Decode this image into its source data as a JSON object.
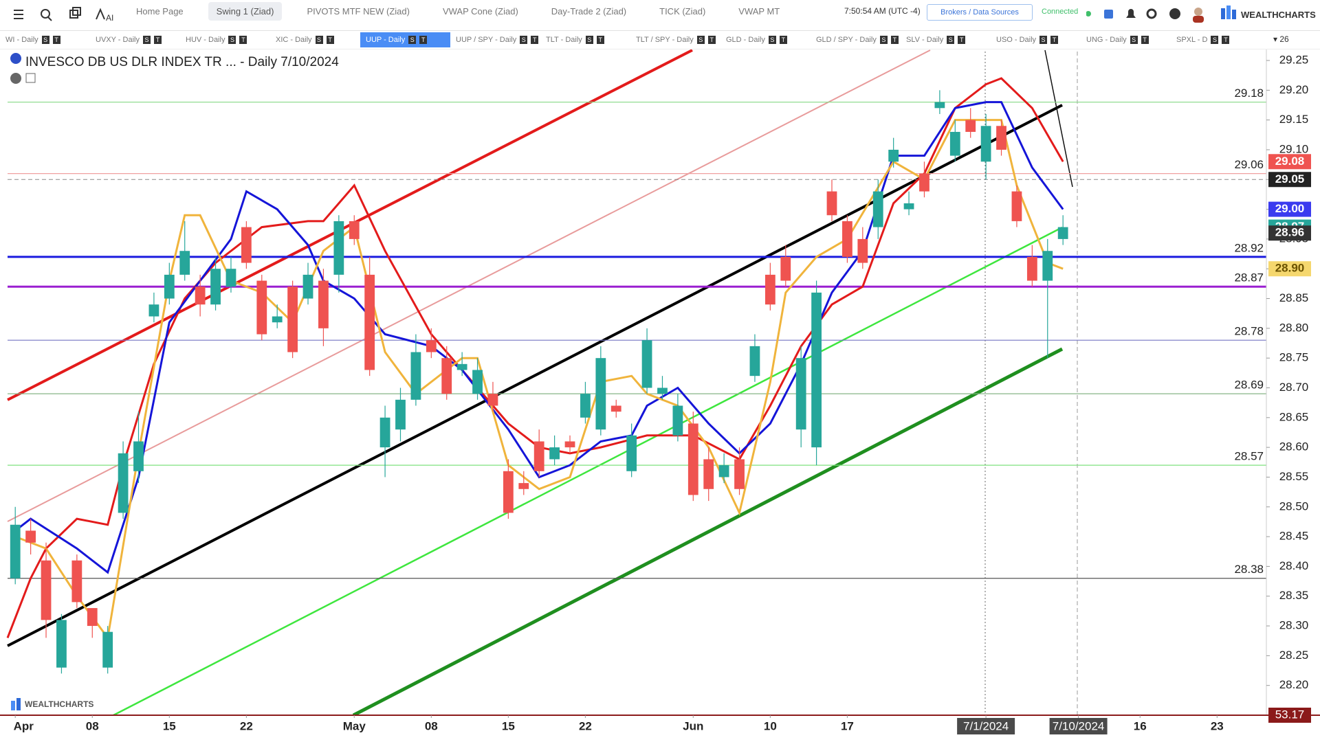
{
  "toolbar": {
    "ai": "AI",
    "tabs": [
      {
        "label": "Home Page",
        "active": false
      },
      {
        "label": "Swing 1 (Ziad)",
        "active": true
      },
      {
        "label": "PIVOTS MTF NEW (Ziad)",
        "active": false
      },
      {
        "label": "VWAP Cone (Ziad)",
        "active": false
      },
      {
        "label": "Day-Trade 2 (Ziad)",
        "active": false
      },
      {
        "label": "TICK (Ziad)",
        "active": false
      },
      {
        "label": "VWAP MT",
        "active": false
      }
    ],
    "time": "7:50:54 AM",
    "timezone": "(UTC -4)",
    "brokers": "Brokers / Data Sources",
    "status": "Connected",
    "brand": "WEALTHCHARTS"
  },
  "watchlist": {
    "badges": [
      "S",
      "T"
    ],
    "count": 26,
    "items": [
      {
        "label": "WI - Daily",
        "active": false
      },
      {
        "label": "UVXY - Daily",
        "active": false
      },
      {
        "label": "HUV - Daily",
        "active": false
      },
      {
        "label": "XIC - Daily",
        "active": false
      },
      {
        "label": "UUP - Daily",
        "active": true
      },
      {
        "label": "UUP / SPY - Daily",
        "active": false
      },
      {
        "label": "TLT - Daily",
        "active": false
      },
      {
        "label": "TLT / SPY - Daily",
        "active": false
      },
      {
        "label": "GLD - Daily",
        "active": false
      },
      {
        "label": "GLD / SPY - Daily",
        "active": false
      },
      {
        "label": "SLV - Daily",
        "active": false
      },
      {
        "label": "USO - Daily",
        "active": false
      },
      {
        "label": "UNG - Daily",
        "active": false
      },
      {
        "label": "SPXL - D",
        "active": false
      }
    ]
  },
  "chart_data": {
    "type": "candlestick",
    "title": "INVESCO DB US DLR INDEX TR ... - Daily 7/10/2024",
    "watermark": "WEALTHCHARTS",
    "up_color": "#26a69a",
    "down_color": "#ef5350",
    "open": [
      28.38,
      28.46,
      28.41,
      28.23,
      28.41,
      28.33,
      28.23,
      28.49,
      28.56,
      28.82,
      28.85,
      28.89,
      28.87,
      28.84,
      28.87,
      28.97,
      28.88,
      28.81,
      28.87,
      28.85,
      28.88,
      28.89,
      28.98,
      28.89,
      28.6,
      28.63,
      28.68,
      28.78,
      28.75,
      28.73,
      28.69,
      28.69,
      28.56,
      28.54,
      28.61,
      28.58,
      28.61,
      28.65,
      28.63,
      28.67,
      28.56,
      28.7,
      28.69,
      28.62,
      28.64,
      28.58,
      28.55,
      28.58,
      28.72,
      28.89,
      28.92,
      28.63,
      28.6,
      29.03,
      28.98,
      28.95,
      28.97,
      29.08,
      29.0,
      29.06,
      29.17,
      29.09,
      29.15,
      29.08,
      29.14,
      29.03,
      28.92,
      28.88,
      28.95
    ],
    "high": [
      28.5,
      28.48,
      28.44,
      28.32,
      28.42,
      28.32,
      28.3,
      28.61,
      28.66,
      28.86,
      28.91,
      28.98,
      28.89,
      28.92,
      28.92,
      28.98,
      28.89,
      28.84,
      28.88,
      28.91,
      28.9,
      28.99,
      28.99,
      28.92,
      28.67,
      28.7,
      28.79,
      28.8,
      28.77,
      28.76,
      28.75,
      28.71,
      28.58,
      28.56,
      28.63,
      28.62,
      28.62,
      28.71,
      28.77,
      28.68,
      28.64,
      28.8,
      28.72,
      28.69,
      28.66,
      28.6,
      28.59,
      28.6,
      28.79,
      28.91,
      28.94,
      28.77,
      28.88,
      29.05,
      28.99,
      28.97,
      29.05,
      29.12,
      29.03,
      29.08,
      29.2,
      29.15,
      29.17,
      29.16,
      29.15,
      29.04,
      28.94,
      28.95,
      28.99
    ],
    "low": [
      28.37,
      28.42,
      28.28,
      28.22,
      28.33,
      28.28,
      28.22,
      28.48,
      28.54,
      28.81,
      28.84,
      28.88,
      28.82,
      28.83,
      28.86,
      28.9,
      28.78,
      28.8,
      28.75,
      28.84,
      28.77,
      28.86,
      28.94,
      28.72,
      28.55,
      28.61,
      28.67,
      28.75,
      28.68,
      28.72,
      28.68,
      28.66,
      28.48,
      28.52,
      28.55,
      28.57,
      28.59,
      28.64,
      28.62,
      28.65,
      28.55,
      28.69,
      28.68,
      28.61,
      28.51,
      28.51,
      28.54,
      28.52,
      28.71,
      28.83,
      28.87,
      28.6,
      28.57,
      28.98,
      28.91,
      28.9,
      28.95,
      29.07,
      28.99,
      29.02,
      29.16,
      29.08,
      29.12,
      29.05,
      29.09,
      28.97,
      28.87,
      28.75,
      28.94
    ],
    "close": [
      28.47,
      28.44,
      28.31,
      28.31,
      28.34,
      28.3,
      28.29,
      28.59,
      28.61,
      28.84,
      28.89,
      28.93,
      28.84,
      28.9,
      28.9,
      28.91,
      28.79,
      28.82,
      28.76,
      28.89,
      28.8,
      28.98,
      28.95,
      28.73,
      28.65,
      28.68,
      28.76,
      28.76,
      28.69,
      28.74,
      28.73,
      28.67,
      28.49,
      28.53,
      28.56,
      28.6,
      28.6,
      28.69,
      28.75,
      28.66,
      28.62,
      28.78,
      28.7,
      28.67,
      28.52,
      28.53,
      28.57,
      28.53,
      28.77,
      28.84,
      28.88,
      28.75,
      28.86,
      28.99,
      28.92,
      28.91,
      29.03,
      29.1,
      29.01,
      29.03,
      29.18,
      29.13,
      29.13,
      29.14,
      29.1,
      28.98,
      28.88,
      28.93,
      28.97
    ],
    "xlim": [
      -0.5,
      81.2
    ],
    "xticks": [
      {
        "value": 0,
        "label": "Apr"
      },
      {
        "value": 5,
        "label": "08"
      },
      {
        "value": 10,
        "label": "15"
      },
      {
        "value": 15,
        "label": "22"
      },
      {
        "value": 22,
        "label": "May"
      },
      {
        "value": 27,
        "label": "08"
      },
      {
        "value": 32,
        "label": "15"
      },
      {
        "value": 37,
        "label": "22"
      },
      {
        "value": 44,
        "label": "Jun"
      },
      {
        "value": 49,
        "label": "10"
      },
      {
        "value": 54,
        "label": "17"
      },
      {
        "value": 63,
        "label": "7/1/2024"
      },
      {
        "value": 69,
        "label": "7/10/2024"
      },
      {
        "value": 73,
        "label": "16"
      },
      {
        "value": 78,
        "label": "23"
      }
    ],
    "ylim": [
      28.15,
      29.265
    ],
    "yticks": [
      {
        "value": 28.2,
        "label": "28.20"
      },
      28.25,
      {
        "value": 28.3,
        "label": "28.30"
      },
      28.35,
      {
        "value": 28.4,
        "label": "28.40"
      },
      28.45,
      {
        "value": 28.5,
        "label": "28.50"
      },
      28.55,
      {
        "value": 28.6,
        "label": "28.60"
      },
      28.65,
      {
        "value": 28.7,
        "label": "28.70"
      },
      28.75,
      {
        "value": 28.8,
        "label": "28.80"
      },
      28.85,
      {
        "value": 28.9,
        "label": "28.90"
      },
      28.95,
      {
        "value": 29.0,
        "label": "29.00"
      },
      29.05,
      {
        "value": 29.1,
        "label": "29.10"
      },
      29.15,
      {
        "value": 29.2,
        "label": "29.20"
      },
      29.25
    ],
    "lines": [
      {
        "color": "#e31b1b",
        "x": [
          -0.5,
          1,
          2,
          4,
          6,
          7,
          9,
          11,
          13,
          16,
          19,
          20,
          22,
          24,
          27,
          29,
          32,
          34,
          36,
          38,
          41,
          44,
          47,
          49,
          51,
          53,
          55,
          57,
          59,
          61,
          63,
          64,
          66,
          68
        ],
        "values": [
          28.28,
          28.38,
          28.43,
          28.48,
          28.47,
          28.57,
          28.74,
          28.85,
          28.91,
          28.97,
          28.98,
          28.98,
          29.04,
          28.93,
          28.79,
          28.73,
          28.64,
          28.6,
          28.59,
          28.6,
          28.62,
          28.62,
          28.58,
          28.67,
          28.77,
          28.84,
          28.87,
          29.01,
          29.06,
          29.17,
          29.21,
          29.22,
          29.17,
          29.08
        ]
      },
      {
        "color": "#1515d8",
        "x": [
          0,
          1,
          4,
          6,
          8,
          10,
          12,
          14,
          15,
          17,
          19,
          20,
          22,
          24,
          27,
          29,
          32,
          34,
          36,
          38,
          40,
          41,
          43,
          45,
          47,
          49,
          51,
          53,
          55,
          57,
          59,
          61,
          63,
          64,
          66,
          68
        ],
        "values": [
          28.46,
          28.48,
          28.43,
          28.39,
          28.55,
          28.81,
          28.88,
          28.95,
          29.03,
          29.0,
          28.94,
          28.88,
          28.85,
          28.79,
          28.77,
          28.73,
          28.63,
          28.55,
          28.57,
          28.61,
          28.62,
          28.67,
          28.7,
          28.64,
          28.59,
          28.64,
          28.74,
          28.86,
          28.93,
          29.09,
          29.09,
          29.17,
          29.18,
          29.18,
          29.07,
          29.0
        ]
      },
      {
        "color": "#f0b43c",
        "x": [
          0,
          2,
          4,
          6,
          8,
          10,
          11,
          12,
          14,
          16,
          18,
          20,
          22,
          24,
          26,
          29,
          30,
          32,
          34,
          36,
          38,
          40,
          41,
          43,
          45,
          47,
          49,
          50,
          52,
          54,
          57,
          59,
          61,
          63,
          64,
          65,
          67,
          68
        ],
        "values": [
          28.45,
          28.43,
          28.35,
          28.28,
          28.59,
          28.88,
          28.99,
          28.99,
          28.88,
          28.86,
          28.81,
          28.93,
          28.97,
          28.76,
          28.69,
          28.75,
          28.75,
          28.57,
          28.53,
          28.55,
          28.71,
          28.72,
          28.69,
          28.67,
          28.6,
          28.49,
          28.71,
          28.86,
          28.92,
          28.95,
          29.08,
          29.05,
          29.15,
          29.15,
          29.15,
          29.04,
          28.91,
          28.9
        ]
      }
    ],
    "levels": [
      {
        "value": 29.18,
        "color": "#8fdc8f"
      },
      {
        "value": 29.06,
        "color": "#f0a0a0"
      },
      {
        "value": 28.92,
        "color": "#1a1adf"
      },
      {
        "value": 28.87,
        "color": "#9a1fd0"
      },
      {
        "value": 28.78,
        "color": "#7474c4"
      },
      {
        "value": 28.69,
        "color": "#86b486"
      },
      {
        "value": 28.57,
        "color": "#7fe07f"
      },
      {
        "value": 28.38,
        "color": "#555555"
      }
    ],
    "price_tags": [
      {
        "value": 29.08,
        "color": "#ef5350",
        "text_color": "#ffffff"
      },
      {
        "value": 29.05,
        "color": "#222222",
        "text_color": "#ffffff"
      },
      {
        "value": 29.0,
        "label": "29.00",
        "color": "#3b3bef",
        "text_color": "#ffffff"
      },
      {
        "value": 28.97,
        "color": "#26a69a",
        "text_color": "#ffffff"
      },
      {
        "value": 28.96,
        "color": "#333333",
        "text_color": "#ffffff"
      },
      {
        "value": 28.9,
        "label": "28.90",
        "color": "#f5d76e",
        "text_color": "#6b5200"
      }
    ],
    "bottom_tag": 53.17
  }
}
